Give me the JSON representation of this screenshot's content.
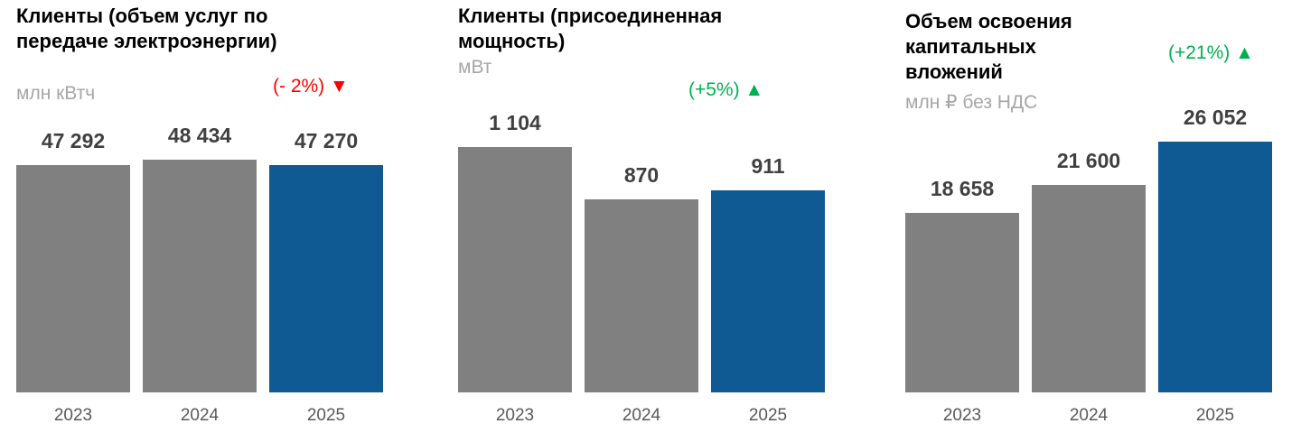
{
  "chart_data": [
    {
      "type": "bar",
      "title": "Клиенты (объем услуг по передаче электроэнергии)",
      "subtitle": "млн кВтч",
      "annotation": "(- 2%) ▼",
      "annotation_color": "#ff0000",
      "categories": [
        "2023",
        "2024",
        "2025"
      ],
      "values": [
        47292,
        48434,
        47270
      ],
      "value_labels": [
        "47 292",
        "48 434",
        "47 270"
      ],
      "colors": [
        "#808080",
        "#808080",
        "#105a93"
      ]
    },
    {
      "type": "bar",
      "title": "Клиенты (присоединенная мощность)",
      "subtitle": "мВт",
      "annotation": "(+5%) ▲",
      "annotation_color": "#00b050",
      "categories": [
        "2023",
        "2024",
        "2025"
      ],
      "values": [
        1104,
        870,
        911
      ],
      "value_labels": [
        "1 104",
        "870",
        "911"
      ],
      "colors": [
        "#808080",
        "#808080",
        "#105a93"
      ]
    },
    {
      "type": "bar",
      "title": "Объем освоения капитальных вложений",
      "subtitle": "млн ₽ без НДС",
      "annotation": "(+21%) ▲",
      "annotation_color": "#00b050",
      "categories": [
        "2023",
        "2024",
        "2025"
      ],
      "values": [
        18658,
        21600,
        26052
      ],
      "value_labels": [
        "18 658",
        "21 600",
        "26 052"
      ],
      "colors": [
        "#808080",
        "#808080",
        "#105a93"
      ]
    }
  ]
}
